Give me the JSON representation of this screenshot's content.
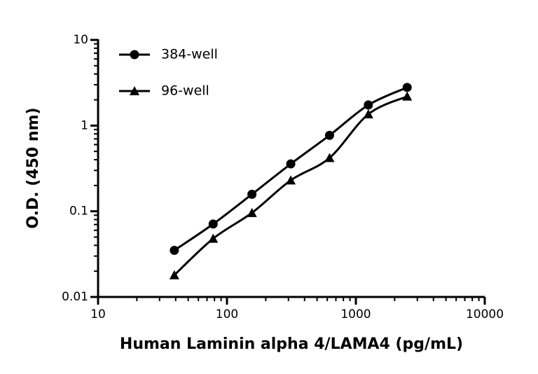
{
  "chart_data": {
    "type": "line",
    "x_label": "Human Laminin alpha 4/LAMA4 (pg/mL)",
    "y_label": "O.D. (450 nm)",
    "x": [
      39.06,
      78.125,
      156.25,
      312.5,
      625,
      1250,
      2500
    ],
    "series": [
      {
        "name": "384-well",
        "color": "#000000",
        "marker": "circle",
        "values": [
          0.035,
          0.071,
          0.158,
          0.357,
          0.77,
          1.74,
          2.79
        ]
      },
      {
        "name": "96-well",
        "color": "#000000",
        "marker": "triangle",
        "values": [
          0.018,
          0.048,
          0.096,
          0.23,
          0.42,
          1.36,
          2.19
        ]
      }
    ],
    "xlim": [
      10,
      10000
    ],
    "xticks": [
      10,
      100,
      1000,
      10000
    ],
    "ylim": [
      0.01,
      10
    ],
    "yticks": [
      0.01,
      0.1,
      1,
      10
    ],
    "xscale": "log",
    "yscale": "log",
    "grid": false,
    "legend": "upper left"
  }
}
